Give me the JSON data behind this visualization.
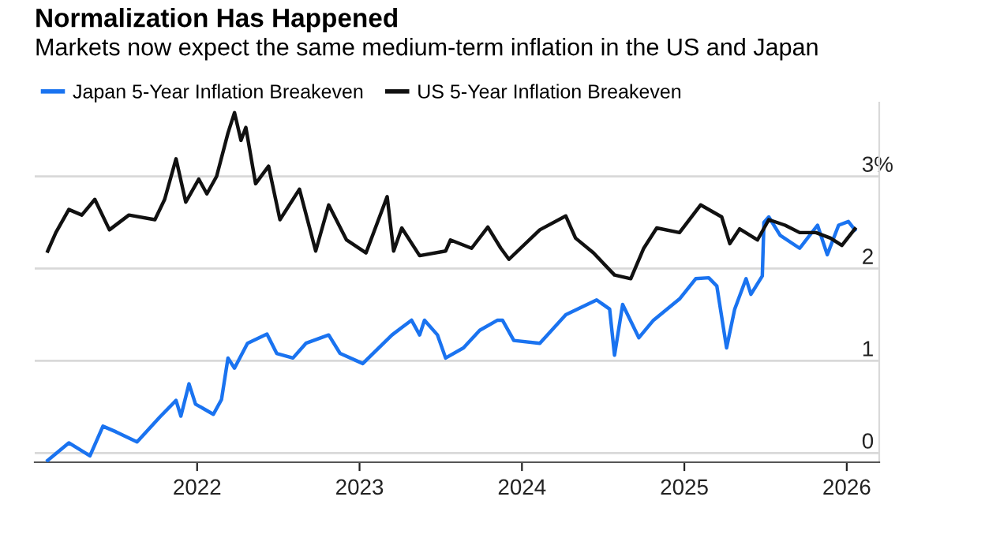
{
  "chart_data": {
    "type": "line",
    "title": "Normalization Has Happened",
    "subtitle": "Markets now expect the same medium-term inflation in the US and Japan",
    "legend": "top left",
    "grid": "y",
    "line_style": "solid",
    "marker": "none",
    "xlim": [
      2021.0,
      2026.2
    ],
    "xticks": [
      2022,
      2023,
      2024,
      2025,
      2026
    ],
    "ylim": [
      -0.1,
      3.8
    ],
    "yticks": [
      0,
      1,
      2,
      {
        "value": 3,
        "label": "3%"
      }
    ],
    "series": [
      {
        "name": "Japan 5-Year Inflation Breakeven",
        "color": "#1a73f0",
        "x": [
          2021.08,
          2021.21,
          2021.34,
          2021.42,
          2021.5,
          2021.63,
          2021.77,
          2021.87,
          2021.9,
          2021.95,
          2021.99,
          2022.1,
          2022.15,
          2022.19,
          2022.23,
          2022.31,
          2022.43,
          2022.49,
          2022.59,
          2022.67,
          2022.81,
          2022.88,
          2023.02,
          2023.2,
          2023.32,
          2023.37,
          2023.4,
          2023.48,
          2023.53,
          2023.64,
          2023.74,
          2023.85,
          2023.88,
          2023.95,
          2024.11,
          2024.27,
          2024.46,
          2024.54,
          2024.57,
          2024.62,
          2024.72,
          2024.81,
          2024.97,
          2025.07,
          2025.15,
          2025.2,
          2025.26,
          2025.31,
          2025.38,
          2025.41,
          2025.48,
          2025.49,
          2025.52,
          2025.59,
          2025.71,
          2025.82,
          2025.88,
          2025.95,
          2026.01,
          2026.05
        ],
        "values": [
          -0.08,
          0.11,
          -0.03,
          0.29,
          0.23,
          0.12,
          0.39,
          0.57,
          0.4,
          0.75,
          0.53,
          0.42,
          0.58,
          1.03,
          0.92,
          1.19,
          1.29,
          1.08,
          1.03,
          1.19,
          1.28,
          1.08,
          0.97,
          1.28,
          1.44,
          1.28,
          1.44,
          1.28,
          1.03,
          1.14,
          1.33,
          1.44,
          1.44,
          1.22,
          1.19,
          1.5,
          1.66,
          1.56,
          1.06,
          1.61,
          1.25,
          1.44,
          1.67,
          1.89,
          1.9,
          1.81,
          1.14,
          1.56,
          1.89,
          1.72,
          1.92,
          2.5,
          2.56,
          2.36,
          2.22,
          2.47,
          2.15,
          2.47,
          2.51,
          2.42
        ]
      },
      {
        "name": "US 5-Year Inflation Breakeven",
        "color": "#111111",
        "x": [
          2021.08,
          2021.13,
          2021.21,
          2021.29,
          2021.37,
          2021.46,
          2021.58,
          2021.74,
          2021.8,
          2021.87,
          2021.93,
          2022.01,
          2022.06,
          2022.12,
          2022.19,
          2022.23,
          2022.27,
          2022.3,
          2022.36,
          2022.44,
          2022.51,
          2022.63,
          2022.73,
          2022.81,
          2022.92,
          2023.04,
          2023.17,
          2023.21,
          2023.26,
          2023.37,
          2023.53,
          2023.56,
          2023.69,
          2023.79,
          2023.87,
          2023.92,
          2024.11,
          2024.27,
          2024.33,
          2024.44,
          2024.57,
          2024.67,
          2024.75,
          2024.83,
          2024.97,
          2025.1,
          2025.23,
          2025.28,
          2025.34,
          2025.45,
          2025.52,
          2025.62,
          2025.71,
          2025.81,
          2025.9,
          2025.97,
          2026.05
        ],
        "values": [
          2.19,
          2.39,
          2.64,
          2.58,
          2.75,
          2.42,
          2.58,
          2.53,
          2.75,
          3.19,
          2.72,
          2.97,
          2.81,
          3.0,
          3.47,
          3.69,
          3.39,
          3.53,
          2.92,
          3.11,
          2.53,
          2.86,
          2.19,
          2.69,
          2.31,
          2.17,
          2.78,
          2.19,
          2.44,
          2.14,
          2.19,
          2.31,
          2.22,
          2.45,
          2.22,
          2.1,
          2.42,
          2.57,
          2.33,
          2.17,
          1.93,
          1.89,
          2.22,
          2.44,
          2.39,
          2.69,
          2.56,
          2.27,
          2.43,
          2.31,
          2.53,
          2.47,
          2.39,
          2.39,
          2.33,
          2.25,
          2.43
        ]
      }
    ]
  }
}
